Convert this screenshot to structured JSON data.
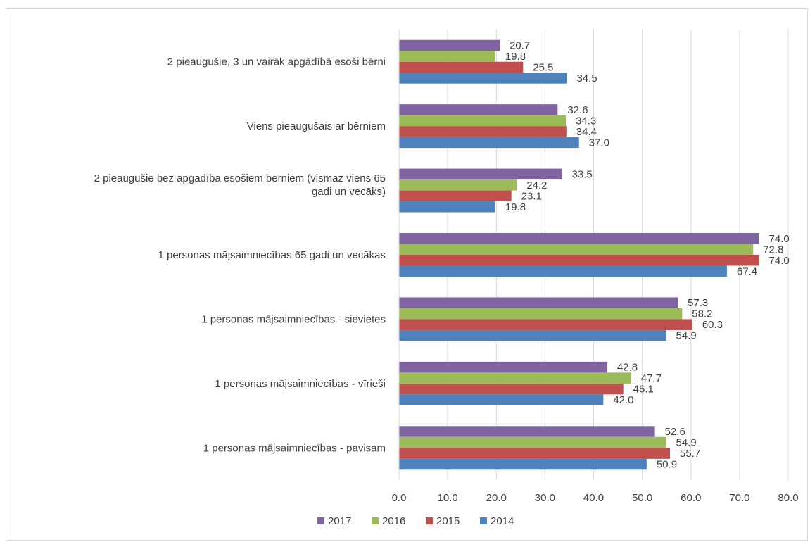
{
  "chart_data": {
    "type": "bar",
    "orientation": "horizontal",
    "categories": [
      [
        "2 pieaugušie, 3 un vairāk apgādībā esoši bērni"
      ],
      [
        "Viens pieaugušais ar bērniem"
      ],
      [
        "2 pieaugušie bez apgādībā esošiem bērniem (vismaz viens  65",
        "gadi un vecāks)"
      ],
      [
        "1 personas mājsaimniecības 65 gadi un vecākas"
      ],
      [
        "1 personas mājsaimniecības - sievietes"
      ],
      [
        "1 personas mājsaimniecības - vīrieši"
      ],
      [
        "1 personas mājsaimniecības - pavisam"
      ]
    ],
    "series": [
      {
        "name": "2017",
        "color": "#8064a2",
        "values": [
          20.7,
          32.6,
          33.5,
          74.0,
          57.3,
          42.8,
          52.6
        ]
      },
      {
        "name": "2016",
        "color": "#9bbb59",
        "values": [
          19.8,
          34.3,
          24.2,
          72.8,
          58.2,
          47.7,
          54.9
        ]
      },
      {
        "name": "2015",
        "color": "#c0504d",
        "values": [
          25.5,
          34.4,
          23.1,
          74.0,
          60.3,
          46.1,
          55.7
        ]
      },
      {
        "name": "2014",
        "color": "#4f81bd",
        "values": [
          34.5,
          37.0,
          19.8,
          67.4,
          54.9,
          42.0,
          50.9
        ]
      }
    ],
    "xlim": [
      0,
      80
    ],
    "xticks": [
      "0.0",
      "10.0",
      "20.0",
      "30.0",
      "40.0",
      "50.0",
      "60.0",
      "70.0",
      "80.0"
    ],
    "grid": true,
    "legend_position": "bottom",
    "data_label_decimals": 1,
    "colors": {
      "gridline": "#d9d9d9",
      "text": "#404040"
    }
  }
}
